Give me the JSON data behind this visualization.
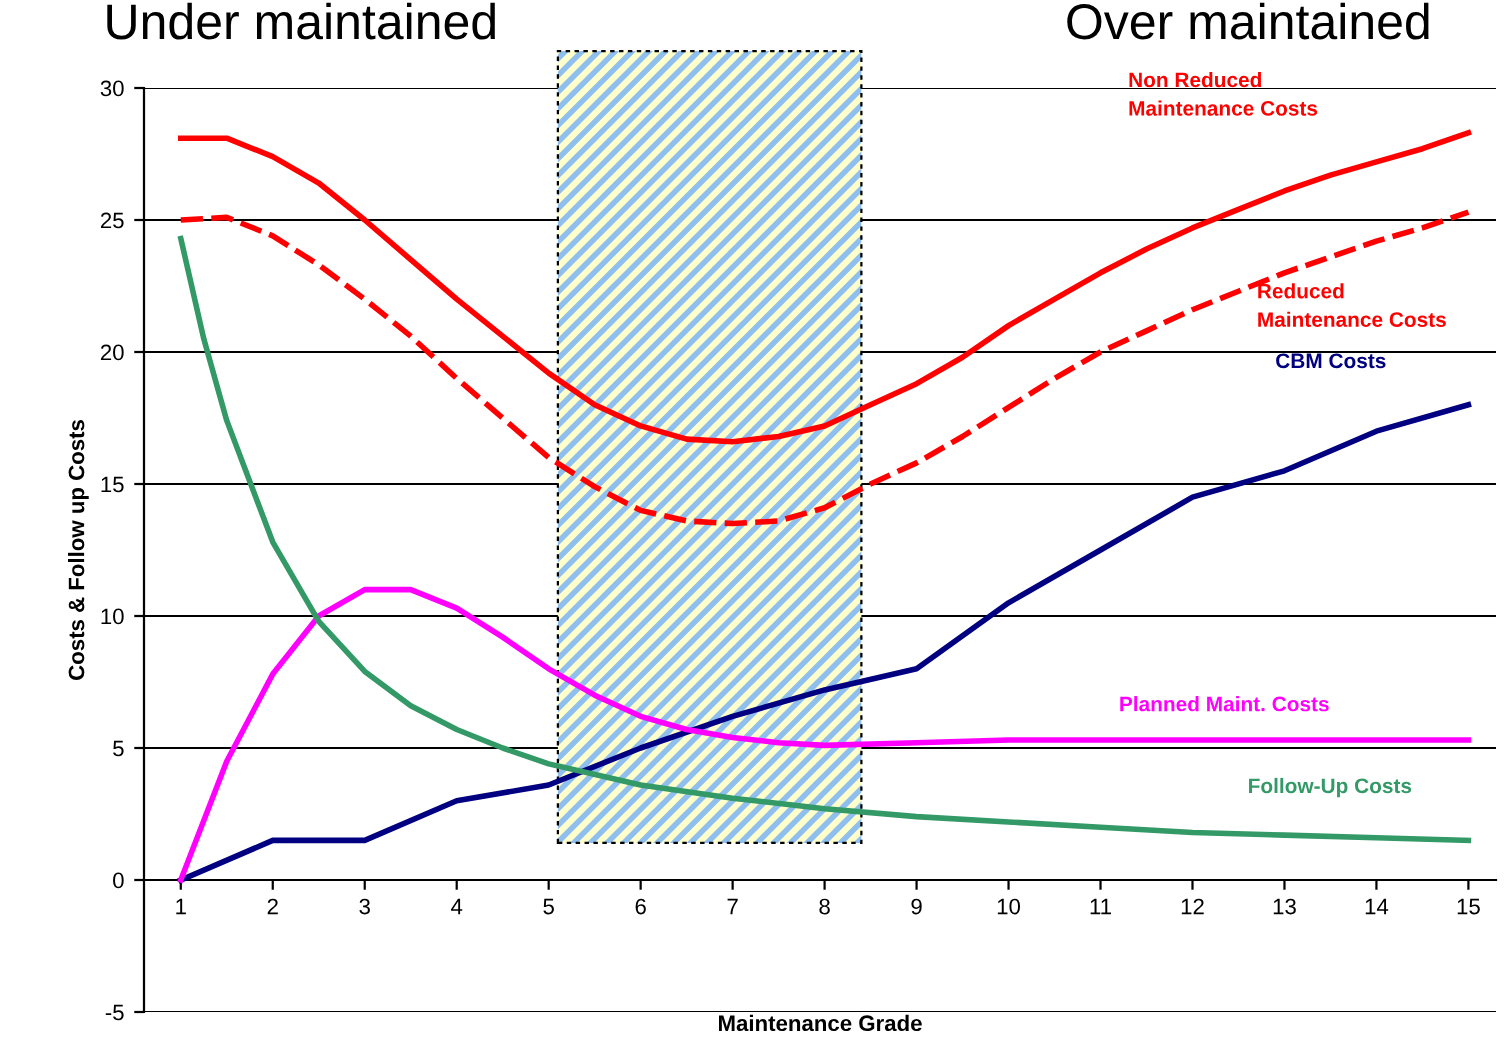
{
  "chart_data": {
    "type": "line",
    "xlabel": "Maintenance Grade",
    "ylabel": "Costs & Follow up Costs",
    "annotations": [
      "Under maintained",
      "Over maintained"
    ],
    "xlim": [
      0.6,
      15.3
    ],
    "xticks": [
      1,
      2,
      3,
      4,
      5,
      6,
      7,
      8,
      9,
      10,
      11,
      12,
      13,
      14,
      15
    ],
    "ylim": [
      -5,
      30
    ],
    "yticks": [
      -5,
      0,
      5,
      10,
      15,
      20,
      25,
      30
    ],
    "grid": "y",
    "marker": "none",
    "bands": [
      {
        "axis": "x",
        "from": 5.1,
        "to": 8.4,
        "color": "#ffffcc"
      }
    ],
    "series": [
      {
        "name": "Non Reduced\nMaintenance Costs",
        "color": "#ff0000",
        "line_style": "solid",
        "x": [
          1,
          1.5,
          2,
          2.5,
          3,
          3.5,
          4,
          4.5,
          5,
          5.5,
          6,
          6.5,
          7,
          7.5,
          8,
          8.5,
          9,
          9.5,
          10,
          10.5,
          11,
          11.5,
          12,
          12.5,
          13,
          13.5,
          14,
          14.5,
          15
        ],
        "values": [
          28.1,
          28.1,
          27.4,
          26.4,
          25,
          23.5,
          22,
          20.6,
          19.2,
          18,
          17.2,
          16.7,
          16.6,
          16.8,
          17.2,
          18,
          18.8,
          19.8,
          21,
          22,
          23,
          23.9,
          24.7,
          25.4,
          26.1,
          26.7,
          27.2,
          27.7,
          28.3
        ]
      },
      {
        "name": "Reduced\nMaintenance Costs",
        "color": "#ff0000",
        "line_style": "dashed",
        "x": [
          1,
          1.5,
          2,
          2.5,
          3,
          3.5,
          4,
          4.5,
          5,
          5.5,
          6,
          6.5,
          7,
          7.5,
          8,
          8.5,
          9,
          9.5,
          10,
          10.5,
          11,
          11.5,
          12,
          12.5,
          13,
          13.5,
          14,
          14.5,
          15
        ],
        "values": [
          25,
          25.1,
          24.4,
          23.3,
          22,
          20.6,
          19,
          17.5,
          16,
          14.9,
          14,
          13.6,
          13.5,
          13.6,
          14.1,
          15,
          15.8,
          16.8,
          17.9,
          19,
          20,
          20.8,
          21.6,
          22.3,
          23,
          23.6,
          24.2,
          24.7,
          25.3
        ]
      },
      {
        "name": "CBM Costs",
        "color": "#000080",
        "line_style": "solid",
        "x": [
          1,
          2,
          3,
          4,
          5,
          6,
          7,
          8,
          9,
          10,
          11,
          12,
          13,
          14,
          15
        ],
        "values": [
          0,
          1.5,
          1.5,
          3,
          3.6,
          5,
          6.2,
          7.2,
          8,
          10.5,
          12.5,
          14.5,
          15.5,
          17,
          18
        ]
      },
      {
        "name": "Planned Maint. Costs",
        "color": "#ff00ff",
        "line_style": "solid",
        "x": [
          1,
          1.5,
          2,
          2.5,
          3,
          3.5,
          4,
          4.5,
          5,
          5.5,
          6,
          6.5,
          7,
          7.5,
          8,
          9,
          10,
          11,
          12,
          13,
          14,
          15
        ],
        "values": [
          0,
          4.5,
          7.8,
          10,
          11,
          11,
          10.3,
          9.2,
          8,
          7,
          6.2,
          5.7,
          5.4,
          5.2,
          5.1,
          5.2,
          5.3,
          5.3,
          5.3,
          5.3,
          5.3,
          5.3
        ]
      },
      {
        "name": "Follow-Up Costs",
        "color": "#339966",
        "line_style": "solid",
        "x": [
          1,
          1.25,
          1.5,
          2,
          2.5,
          3,
          3.5,
          4,
          4.5,
          5,
          6,
          7,
          8,
          9,
          10,
          11,
          12,
          13,
          14,
          15
        ],
        "values": [
          24.3,
          20.5,
          17.4,
          12.8,
          9.8,
          7.9,
          6.6,
          5.7,
          5,
          4.4,
          3.6,
          3.1,
          2.7,
          2.4,
          2.2,
          2.0,
          1.8,
          1.7,
          1.6,
          1.5
        ]
      }
    ]
  }
}
